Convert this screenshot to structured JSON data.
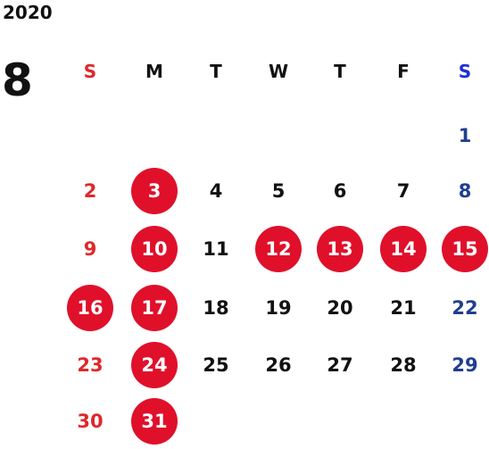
{
  "calendar": {
    "year": "2020",
    "month": "8",
    "weekdays": [
      "S",
      "M",
      "T",
      "W",
      "T",
      "F",
      "S"
    ],
    "weeks": [
      [
        null,
        null,
        null,
        null,
        null,
        null,
        {
          "day": "1"
        }
      ],
      [
        {
          "day": "2"
        },
        {
          "day": "3",
          "highlight": true
        },
        {
          "day": "4"
        },
        {
          "day": "5"
        },
        {
          "day": "6"
        },
        {
          "day": "7"
        },
        {
          "day": "8"
        }
      ],
      [
        {
          "day": "9"
        },
        {
          "day": "10",
          "highlight": true
        },
        {
          "day": "11"
        },
        {
          "day": "12",
          "highlight": true
        },
        {
          "day": "13",
          "highlight": true
        },
        {
          "day": "14",
          "highlight": true
        },
        {
          "day": "15",
          "highlight": true
        }
      ],
      [
        {
          "day": "16",
          "highlight": true
        },
        {
          "day": "17",
          "highlight": true
        },
        {
          "day": "18"
        },
        {
          "day": "19"
        },
        {
          "day": "20"
        },
        {
          "day": "21"
        },
        {
          "day": "22"
        }
      ],
      [
        {
          "day": "23"
        },
        {
          "day": "24",
          "highlight": true
        },
        {
          "day": "25"
        },
        {
          "day": "26"
        },
        {
          "day": "27"
        },
        {
          "day": "28"
        },
        {
          "day": "29"
        }
      ],
      [
        {
          "day": "30"
        },
        {
          "day": "31",
          "highlight": true
        },
        null,
        null,
        null,
        null,
        null
      ]
    ],
    "colors": {
      "sunday": "#e0272b",
      "saturday": "#1f3f8f",
      "saturday_header": "#1b2fd6",
      "weekday": "#111111",
      "highlight_bg": "#e0102a",
      "highlight_text": "#ffffff"
    }
  }
}
